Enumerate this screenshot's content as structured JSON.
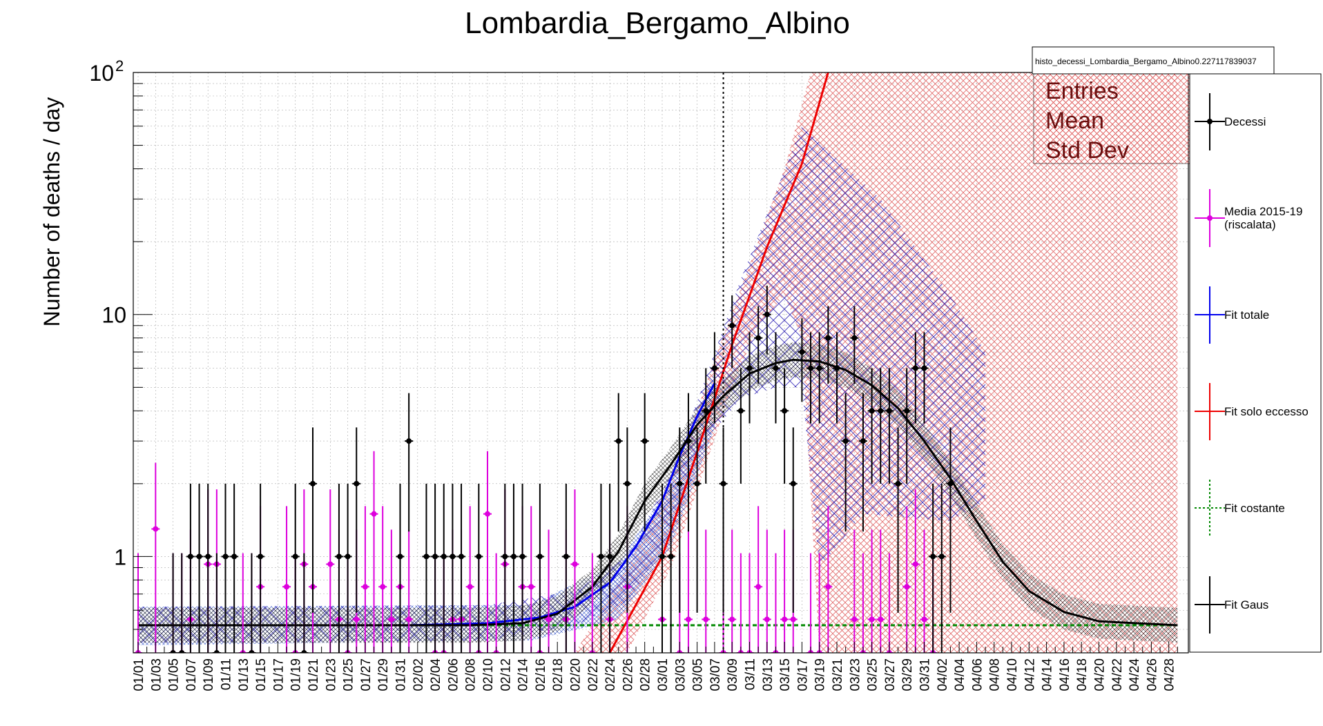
{
  "chart_data": {
    "type": "scatter",
    "title": "Lombardia_Bergamo_Albino",
    "ylabel": "Number of deaths / day",
    "xlabel": "",
    "yscale": "log",
    "ylim": [
      0.4,
      100
    ],
    "y_tick_labels": [
      {
        "value": 1,
        "label": "1"
      },
      {
        "value": 10,
        "label": "10"
      },
      {
        "value": 100,
        "label": "10",
        "sup": "2"
      }
    ],
    "grid": true,
    "x_tick_labels": [
      "01/01",
      "01/03",
      "01/05",
      "01/07",
      "01/09",
      "01/11",
      "01/13",
      "01/15",
      "01/17",
      "01/19",
      "01/21",
      "01/23",
      "01/25",
      "01/27",
      "01/29",
      "01/31",
      "02/02",
      "02/04",
      "02/06",
      "02/08",
      "02/10",
      "02/12",
      "02/14",
      "02/16",
      "02/18",
      "02/20",
      "02/22",
      "02/24",
      "02/26",
      "02/28",
      "03/01",
      "03/03",
      "03/05",
      "03/07",
      "03/09",
      "03/11",
      "03/13",
      "03/15",
      "03/17",
      "03/19",
      "03/21",
      "03/23",
      "03/25",
      "03/27",
      "03/29",
      "03/31",
      "04/02",
      "04/04",
      "04/06",
      "04/08",
      "04/10",
      "04/12",
      "04/14",
      "04/16",
      "04/18",
      "04/20",
      "04/22",
      "04/24",
      "04/26",
      "04/28"
    ],
    "vertical_marker_date": "03/08",
    "stats_box": {
      "name": "histo_decessi_Lombardia_Bergamo_Albino0.227117839037",
      "keys": [
        "Entries",
        "Mean",
        "Std Dev"
      ]
    },
    "legend_position": "right",
    "series": [
      {
        "name": "Decessi",
        "color": "#000000",
        "kind": "points",
        "points": [
          [
            "01/05",
            0.4
          ],
          [
            "01/06",
            0.4
          ],
          [
            "01/07",
            1
          ],
          [
            "01/08",
            1
          ],
          [
            "01/09",
            1
          ],
          [
            "01/10",
            0.4
          ],
          [
            "01/11",
            1
          ],
          [
            "01/12",
            1
          ],
          [
            "01/14",
            0.4
          ],
          [
            "01/15",
            1
          ],
          [
            "01/19",
            1
          ],
          [
            "01/20",
            0.4
          ],
          [
            "01/21",
            2
          ],
          [
            "01/24",
            1
          ],
          [
            "01/25",
            1
          ],
          [
            "01/26",
            2
          ],
          [
            "01/31",
            1
          ],
          [
            "02/01",
            3
          ],
          [
            "02/03",
            1
          ],
          [
            "02/04",
            1
          ],
          [
            "02/05",
            1
          ],
          [
            "02/06",
            1
          ],
          [
            "02/07",
            1
          ],
          [
            "02/09",
            1
          ],
          [
            "02/12",
            1
          ],
          [
            "02/13",
            1
          ],
          [
            "02/14",
            1
          ],
          [
            "02/16",
            1
          ],
          [
            "02/19",
            1
          ],
          [
            "02/23",
            1
          ],
          [
            "02/24",
            1
          ],
          [
            "02/25",
            3
          ],
          [
            "02/26",
            2
          ],
          [
            "02/28",
            3
          ],
          [
            "03/01",
            1
          ],
          [
            "03/02",
            1
          ],
          [
            "03/03",
            2
          ],
          [
            "03/04",
            3
          ],
          [
            "03/05",
            2
          ],
          [
            "03/06",
            4
          ],
          [
            "03/07",
            6
          ],
          [
            "03/08",
            2
          ],
          [
            "03/09",
            9
          ],
          [
            "03/10",
            4
          ],
          [
            "03/11",
            6
          ],
          [
            "03/12",
            8
          ],
          [
            "03/13",
            10
          ],
          [
            "03/14",
            6
          ],
          [
            "03/15",
            4
          ],
          [
            "03/16",
            2
          ],
          [
            "03/17",
            7
          ],
          [
            "03/18",
            6
          ],
          [
            "03/19",
            6
          ],
          [
            "03/20",
            8
          ],
          [
            "03/21",
            6
          ],
          [
            "03/22",
            3
          ],
          [
            "03/23",
            8
          ],
          [
            "03/24",
            3
          ],
          [
            "03/25",
            4
          ],
          [
            "03/26",
            4
          ],
          [
            "03/27",
            4
          ],
          [
            "03/28",
            2
          ],
          [
            "03/29",
            4
          ],
          [
            "03/30",
            6
          ],
          [
            "03/31",
            6
          ],
          [
            "04/01",
            1
          ],
          [
            "04/02",
            1
          ],
          [
            "04/03",
            2
          ]
        ]
      },
      {
        "name": "Media 2015-19",
        "name_line2": "(riscalata)",
        "color": "#dd00dd",
        "kind": "points",
        "points": [
          [
            "01/01",
            0.4
          ],
          [
            "01/03",
            1.3
          ],
          [
            "01/05",
            0.4
          ],
          [
            "01/06",
            0.4
          ],
          [
            "01/07",
            0.55
          ],
          [
            "01/09",
            0.93
          ],
          [
            "01/10",
            0.93
          ],
          [
            "01/13",
            0.4
          ],
          [
            "01/14",
            0.4
          ],
          [
            "01/15",
            0.75
          ],
          [
            "01/18",
            0.75
          ],
          [
            "01/19",
            0.4
          ],
          [
            "01/20",
            0.93
          ],
          [
            "01/21",
            0.75
          ],
          [
            "01/23",
            0.93
          ],
          [
            "01/24",
            0.55
          ],
          [
            "01/25",
            0.4
          ],
          [
            "01/26",
            0.55
          ],
          [
            "01/27",
            0.75
          ],
          [
            "01/28",
            1.5
          ],
          [
            "01/29",
            0.75
          ],
          [
            "01/30",
            0.55
          ],
          [
            "01/31",
            0.75
          ],
          [
            "02/01",
            0.55
          ],
          [
            "02/04",
            0.4
          ],
          [
            "02/05",
            0.4
          ],
          [
            "02/06",
            0.55
          ],
          [
            "02/07",
            0.55
          ],
          [
            "02/08",
            0.75
          ],
          [
            "02/09",
            0.4
          ],
          [
            "02/10",
            1.5
          ],
          [
            "02/11",
            0.4
          ],
          [
            "02/12",
            0.93
          ],
          [
            "02/14",
            0.75
          ],
          [
            "02/15",
            0.75
          ],
          [
            "02/16",
            0.4
          ],
          [
            "02/17",
            0.55
          ],
          [
            "02/19",
            0.55
          ],
          [
            "02/20",
            0.93
          ],
          [
            "02/22",
            0.4
          ],
          [
            "02/24",
            0.55
          ],
          [
            "02/26",
            0.75
          ],
          [
            "03/01",
            0.55
          ],
          [
            "03/03",
            0.4
          ],
          [
            "03/04",
            0.55
          ],
          [
            "03/06",
            0.55
          ],
          [
            "03/08",
            0.4
          ],
          [
            "03/09",
            0.55
          ],
          [
            "03/10",
            0.4
          ],
          [
            "03/11",
            0.4
          ],
          [
            "03/12",
            0.75
          ],
          [
            "03/13",
            0.55
          ],
          [
            "03/14",
            0.4
          ],
          [
            "03/15",
            0.55
          ],
          [
            "03/16",
            0.55
          ],
          [
            "03/18",
            0.4
          ],
          [
            "03/19",
            0.4
          ],
          [
            "03/20",
            0.75
          ],
          [
            "03/23",
            0.55
          ],
          [
            "03/24",
            0.4
          ],
          [
            "03/25",
            0.55
          ],
          [
            "03/26",
            0.55
          ],
          [
            "03/27",
            0.4
          ],
          [
            "03/29",
            0.75
          ],
          [
            "03/30",
            0.93
          ],
          [
            "03/31",
            0.55
          ],
          [
            "04/01",
            0.4
          ]
        ]
      },
      {
        "name": "Fit totale",
        "color": "#0000ee",
        "kind": "curve",
        "points": [
          [
            "01/01",
            0.52
          ],
          [
            "02/01",
            0.52
          ],
          [
            "02/10",
            0.53
          ],
          [
            "02/16",
            0.56
          ],
          [
            "02/20",
            0.62
          ],
          [
            "02/24",
            0.78
          ],
          [
            "02/27",
            1.1
          ],
          [
            "03/01",
            1.7
          ],
          [
            "03/03",
            2.6
          ],
          [
            "03/05",
            3.8
          ],
          [
            "03/07",
            5.2
          ]
        ]
      },
      {
        "name": "Fit solo eccesso",
        "color": "#ee0000",
        "kind": "curve",
        "points": [
          [
            "02/24",
            0.4
          ],
          [
            "03/01",
            1.0
          ],
          [
            "03/05",
            2.7
          ],
          [
            "03/09",
            7.5
          ],
          [
            "03/13",
            19
          ],
          [
            "03/17",
            42
          ],
          [
            "03/20",
            100
          ]
        ]
      },
      {
        "name": "Fit costante",
        "color": "#008800",
        "kind": "constant",
        "points": [
          [
            "01/01",
            0.52
          ],
          [
            "04/29",
            0.52
          ]
        ]
      },
      {
        "name": "Fit Gaus",
        "color": "#000000",
        "kind": "curve",
        "points": [
          [
            "01/01",
            0.52
          ],
          [
            "02/08",
            0.52
          ],
          [
            "02/14",
            0.53
          ],
          [
            "02/18",
            0.58
          ],
          [
            "02/22",
            0.75
          ],
          [
            "02/25",
            1.05
          ],
          [
            "02/28",
            1.7
          ],
          [
            "03/02",
            2.4
          ],
          [
            "03/05",
            3.5
          ],
          [
            "03/08",
            4.6
          ],
          [
            "03/11",
            5.7
          ],
          [
            "03/14",
            6.3
          ],
          [
            "03/16",
            6.5
          ],
          [
            "03/19",
            6.4
          ],
          [
            "03/22",
            5.9
          ],
          [
            "03/25",
            5.1
          ],
          [
            "03/28",
            4.1
          ],
          [
            "03/31",
            3.0
          ],
          [
            "04/03",
            2.1
          ],
          [
            "04/06",
            1.4
          ],
          [
            "04/09",
            0.95
          ],
          [
            "04/12",
            0.72
          ],
          [
            "04/16",
            0.59
          ],
          [
            "04/20",
            0.54
          ],
          [
            "04/29",
            0.52
          ]
        ]
      }
    ]
  }
}
